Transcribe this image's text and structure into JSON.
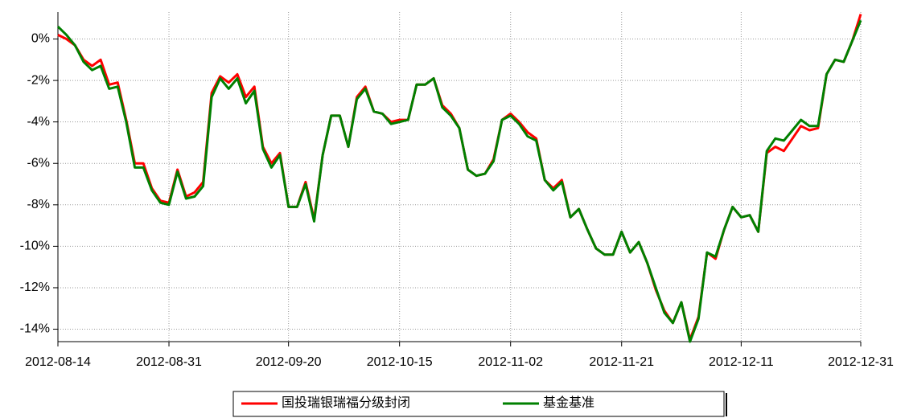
{
  "chart_data": {
    "type": "line",
    "categories": [
      "2012-08-14",
      null,
      null,
      null,
      null,
      null,
      null,
      null,
      null,
      null,
      null,
      null,
      null,
      "2012-08-31",
      null,
      null,
      null,
      null,
      null,
      null,
      null,
      null,
      null,
      null,
      null,
      null,
      null,
      "2012-09-20",
      null,
      null,
      null,
      null,
      null,
      null,
      null,
      null,
      null,
      null,
      null,
      null,
      "2012-10-15",
      null,
      null,
      null,
      null,
      null,
      null,
      null,
      null,
      null,
      null,
      null,
      null,
      "2012-11-02",
      null,
      null,
      null,
      null,
      null,
      null,
      null,
      null,
      null,
      null,
      null,
      null,
      "2012-11-21",
      null,
      null,
      null,
      null,
      null,
      null,
      null,
      null,
      null,
      null,
      null,
      null,
      null,
      "2012-12-11",
      null,
      null,
      null,
      null,
      null,
      null,
      null,
      null,
      null,
      null,
      null,
      null,
      null,
      "2012-12-31"
    ],
    "series": [
      {
        "name": "国投瑞银瑞福分级封闭",
        "color": "#ff0000",
        "values": [
          0.2,
          0.0,
          -0.3,
          -1.0,
          -1.3,
          -1.0,
          -2.2,
          -2.1,
          -3.9,
          -6.0,
          -6.0,
          -7.2,
          -7.8,
          -7.9,
          -6.3,
          -7.6,
          -7.4,
          -6.9,
          -2.6,
          -1.8,
          -2.1,
          -1.7,
          -2.8,
          -2.3,
          -5.2,
          -6.0,
          -5.5,
          -8.1,
          -8.1,
          -6.9,
          -8.7,
          -5.6,
          -3.7,
          -3.7,
          -5.2,
          -2.8,
          -2.3,
          -3.5,
          -3.6,
          -4.0,
          -3.9,
          -3.9,
          -2.2,
          -2.2,
          -1.9,
          -3.2,
          -3.6,
          -4.3,
          -6.3,
          -6.6,
          -6.5,
          -5.8,
          -3.9,
          -3.6,
          -4.0,
          -4.5,
          -4.8,
          -6.8,
          -7.2,
          -6.8,
          -8.6,
          -8.2,
          -9.2,
          -10.1,
          -10.4,
          -10.4,
          -9.3,
          -10.3,
          -9.8,
          -10.8,
          -12.1,
          -13.1,
          -13.7,
          -12.7,
          -14.5,
          -13.4,
          -10.3,
          -10.6,
          -9.2,
          -8.1,
          -8.6,
          -8.5,
          -9.3,
          -5.5,
          -5.2,
          -5.4,
          -4.8,
          -4.2,
          -4.4,
          -4.3,
          -1.7,
          -1.0,
          -1.1,
          -0.1,
          1.2
        ]
      },
      {
        "name": "基金基准",
        "color": "#008000",
        "values": [
          0.6,
          0.2,
          -0.3,
          -1.1,
          -1.5,
          -1.3,
          -2.4,
          -2.3,
          -4.0,
          -6.2,
          -6.2,
          -7.3,
          -7.9,
          -8.0,
          -6.4,
          -7.7,
          -7.6,
          -7.1,
          -2.8,
          -1.9,
          -2.4,
          -1.9,
          -3.1,
          -2.5,
          -5.3,
          -6.2,
          -5.6,
          -8.1,
          -8.1,
          -7.0,
          -8.8,
          -5.6,
          -3.7,
          -3.7,
          -5.2,
          -2.9,
          -2.4,
          -3.5,
          -3.6,
          -4.1,
          -4.0,
          -3.9,
          -2.2,
          -2.2,
          -1.9,
          -3.3,
          -3.7,
          -4.3,
          -6.3,
          -6.6,
          -6.5,
          -5.9,
          -3.9,
          -3.7,
          -4.1,
          -4.7,
          -4.9,
          -6.8,
          -7.3,
          -6.9,
          -8.6,
          -8.2,
          -9.2,
          -10.1,
          -10.4,
          -10.4,
          -9.3,
          -10.3,
          -9.8,
          -10.8,
          -12.0,
          -13.2,
          -13.7,
          -12.7,
          -14.6,
          -13.5,
          -10.3,
          -10.5,
          -9.2,
          -8.1,
          -8.6,
          -8.5,
          -9.3,
          -5.4,
          -4.8,
          -4.9,
          -4.4,
          -3.9,
          -4.2,
          -4.2,
          -1.7,
          -1.0,
          -1.1,
          -0.1,
          0.9
        ]
      }
    ],
    "ylim": [
      -14.6,
      1.3
    ],
    "yticks": [
      {
        "value": 0,
        "label": "0%"
      },
      {
        "value": -2,
        "label": "-2%"
      },
      {
        "value": -4,
        "label": "-4%"
      },
      {
        "value": -6,
        "label": "-6%"
      },
      {
        "value": -8,
        "label": "-8%"
      },
      {
        "value": -10,
        "label": "-10%"
      },
      {
        "value": -12,
        "label": "-12%"
      },
      {
        "value": -14,
        "label": "-14%"
      }
    ],
    "grid": true,
    "legend": "bottom"
  }
}
